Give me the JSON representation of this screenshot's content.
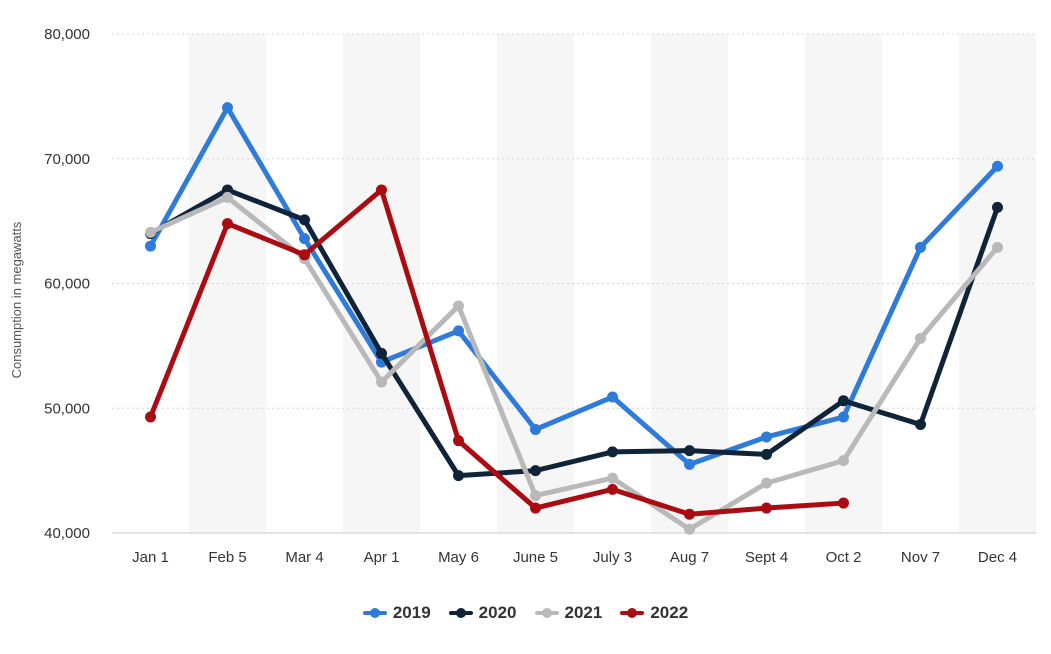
{
  "chart_data": {
    "type": "line",
    "title": "",
    "xlabel": "",
    "ylabel": "Consumption in megawatts",
    "ylim": [
      40000,
      80000
    ],
    "yticks": [
      40000,
      50000,
      60000,
      70000,
      80000
    ],
    "ytick_labels": [
      "40,000",
      "50,000",
      "60,000",
      "70,000",
      "80,000"
    ],
    "categories": [
      "Jan 1",
      "Feb 5",
      "Mar 4",
      "Apr 1",
      "May 6",
      "June 5",
      "July 3",
      "Aug 7",
      "Sept 4",
      "Oct 2",
      "Nov 7",
      "Dec 4"
    ],
    "grid": true,
    "legend_position": "bottom-center",
    "series": [
      {
        "name": "2019",
        "color": "#2f7bd9",
        "values": [
          63000,
          74100,
          63600,
          53700,
          56200,
          48300,
          50900,
          45500,
          47700,
          49300,
          62900,
          69400
        ]
      },
      {
        "name": "2020",
        "color": "#0f2339",
        "values": [
          64000,
          67500,
          65100,
          54400,
          44600,
          45000,
          46500,
          46600,
          46300,
          50600,
          48700,
          66100
        ]
      },
      {
        "name": "2021",
        "color": "#b9b9b9",
        "values": [
          64100,
          66900,
          62000,
          52100,
          58200,
          43000,
          44400,
          40300,
          44000,
          45800,
          55600,
          62900
        ]
      },
      {
        "name": "2022",
        "color": "#aa0c12",
        "values": [
          49300,
          64800,
          62300,
          67500,
          47400,
          42000,
          43500,
          41500,
          42000,
          42400,
          null,
          null
        ]
      }
    ]
  }
}
